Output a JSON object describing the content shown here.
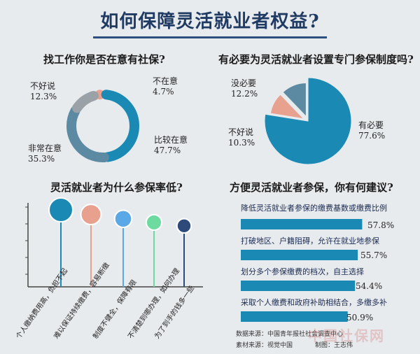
{
  "header": {
    "title": "如何保障灵活就业者权益?"
  },
  "colors": {
    "teal": "#1a8ab5",
    "slate": "#5c8aa3",
    "gray": "#9aa2a8",
    "salmon": "#e8a08f",
    "title": "#1f3a63",
    "dark_blue": "#2e4a7a",
    "blue": "#5aa8e6",
    "green": "#6ddba0"
  },
  "chart_data": [
    {
      "type": "pie",
      "variant": "donut",
      "title": "找工作你是否在意有社保?",
      "slices": [
        {
          "name": "不在意",
          "value": 4.7,
          "label": "4.7%",
          "color": "#e8a08f"
        },
        {
          "name": "比较在意",
          "value": 47.7,
          "label": "47.7%",
          "color": "#1a8ab5"
        },
        {
          "name": "非常在意",
          "value": 35.3,
          "label": "35.3%",
          "color": "#5c8aa3"
        },
        {
          "name": "不好说",
          "value": 12.3,
          "label": "12.3%",
          "color": "#9aa2a8"
        }
      ]
    },
    {
      "type": "pie",
      "title": "有必要为灵活就业者设置专门参保制度吗?",
      "slices": [
        {
          "name": "有必要",
          "value": 77.6,
          "label": "77.6%",
          "color": "#1a8ab5"
        },
        {
          "name": "不好说",
          "value": 10.3,
          "label": "10.3%",
          "color": "#e8a08f"
        },
        {
          "name": "没必要",
          "value": 12.2,
          "label": "12.2%",
          "color": "#5c8aa3"
        }
      ]
    },
    {
      "type": "scatter",
      "variant": "lollipop",
      "title": "灵活就业者为什么参保率低?",
      "categories": [
        "个人缴纳费用高，负担不起",
        "难以保证持续缴费，容易断缴",
        "制度不健全，保障有限",
        "不清楚到哪办理，如何办理",
        "为了到手的钱多一些"
      ],
      "colors": [
        "#1a8ab5",
        "#e8a08f",
        "#5aa8e6",
        "#6ddba0",
        "#2e4a7a"
      ],
      "relative_size": [
        1.0,
        0.85,
        0.72,
        0.65,
        0.6
      ]
    },
    {
      "type": "bar",
      "orientation": "horizontal",
      "title": "方便灵活就业者参保，你有何建议?",
      "categories": [
        "降低灵活就业者参保的缴费基数或缴费比例",
        "打破地区、户籍阻碍，允许在就业地参保",
        "划分多个参保缴费的档次，自主选择",
        "采取个人缴费和政府补助相结合，多缴多补"
      ],
      "values": [
        57.8,
        55.7,
        54.4,
        50.9
      ],
      "labels": [
        "57.8%",
        "55.7%",
        "54.4%",
        "50.9%"
      ],
      "color": "#1a8ab5"
    }
  ],
  "footer": {
    "source": "数据来源：中国青年报社社会调查中心",
    "material": "素材来源：视觉中国",
    "maker": "制图：王志伟",
    "watermark": "中国社保网"
  }
}
